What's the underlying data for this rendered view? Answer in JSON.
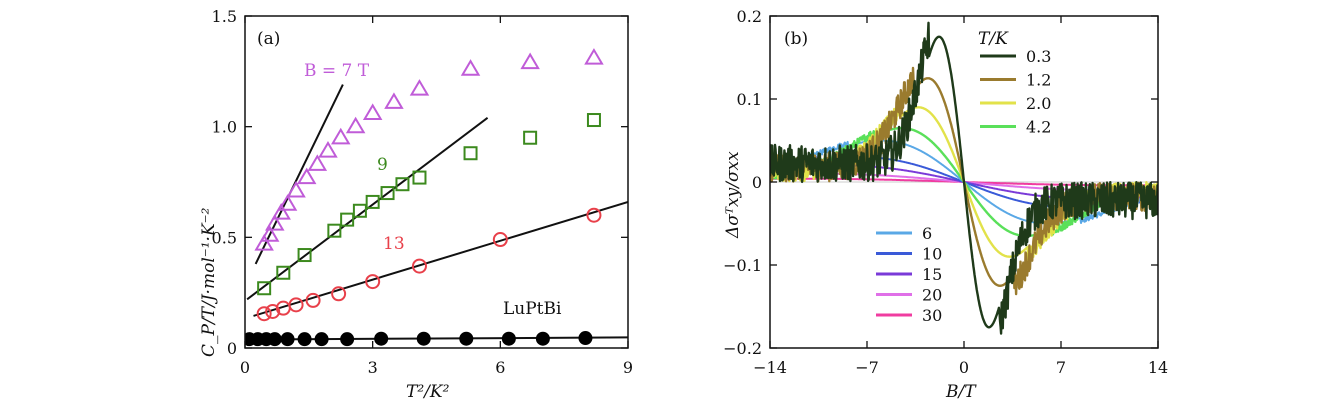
{
  "chart_data": [
    {
      "type": "scatter",
      "panel_label": "(a)",
      "xlabel": "T²/K²",
      "ylabel": "C_P/T/J·mol⁻¹·K⁻²",
      "xlim": [
        0,
        9
      ],
      "ylim": [
        0,
        1.5
      ],
      "xticks": [
        0,
        3,
        6,
        9
      ],
      "yticks": [
        0,
        0.5,
        1.0,
        1.5
      ],
      "xtick_labels": [
        "0",
        "3",
        "6",
        "9"
      ],
      "ytick_labels": [
        "0",
        "0.5",
        "1.0",
        "1.5"
      ],
      "annotations": [
        {
          "text": "B = 7  T",
          "color": "#c05cd8"
        },
        {
          "text": "9",
          "color": "#3c8a1e"
        },
        {
          "text": "13",
          "color": "#e8404a"
        },
        {
          "text": "LuPtBi",
          "color": "#111111"
        }
      ],
      "series": [
        {
          "marker": "triangle",
          "color": "#c05cd8",
          "x": [
            0.45,
            0.58,
            0.7,
            0.85,
            1.0,
            1.2,
            1.45,
            1.7,
            1.95,
            2.25,
            2.6,
            3.0,
            3.5,
            4.1,
            5.3,
            6.7,
            8.2
          ],
          "y": [
            0.47,
            0.51,
            0.56,
            0.61,
            0.65,
            0.71,
            0.77,
            0.83,
            0.89,
            0.95,
            1.0,
            1.06,
            1.11,
            1.17,
            1.26,
            1.29,
            1.31
          ],
          "fit_x": [
            0.25,
            2.3
          ],
          "fit_y": [
            0.38,
            1.19
          ]
        },
        {
          "marker": "square",
          "color": "#3c8a1e",
          "x": [
            0.45,
            0.9,
            1.4,
            2.1,
            2.4,
            2.7,
            3.0,
            3.35,
            3.7,
            4.1,
            5.3,
            6.7,
            8.2
          ],
          "y": [
            0.27,
            0.34,
            0.42,
            0.53,
            0.58,
            0.62,
            0.66,
            0.7,
            0.74,
            0.77,
            0.88,
            0.95,
            1.03
          ],
          "fit_x": [
            0.05,
            5.7
          ],
          "fit_y": [
            0.22,
            1.04
          ]
        },
        {
          "marker": "circle",
          "color": "#e8404a",
          "x": [
            0.45,
            0.65,
            0.9,
            1.2,
            1.6,
            2.2,
            3.0,
            4.1,
            6.0,
            8.2
          ],
          "y": [
            0.155,
            0.165,
            0.18,
            0.195,
            0.215,
            0.245,
            0.3,
            0.37,
            0.49,
            0.6
          ],
          "fit_x": [
            0.2,
            9.0
          ],
          "fit_y": [
            0.145,
            0.66
          ]
        },
        {
          "marker": "filled-circle",
          "color": "#000000",
          "x": [
            0.1,
            0.3,
            0.5,
            0.7,
            1.0,
            1.4,
            1.8,
            2.4,
            3.2,
            4.2,
            5.2,
            6.2,
            7.0,
            8.0
          ],
          "y": [
            0.04,
            0.04,
            0.04,
            0.04,
            0.04,
            0.04,
            0.04,
            0.04,
            0.042,
            0.042,
            0.042,
            0.042,
            0.042,
            0.045
          ],
          "fit_x": [
            0.0,
            9.0
          ],
          "fit_y": [
            0.038,
            0.048
          ]
        }
      ]
    },
    {
      "type": "line",
      "panel_label": "(b)",
      "xlabel": "B/T",
      "ylabel": "Δσᵀxy/σxx",
      "xlim": [
        -14,
        14
      ],
      "ylim": [
        -0.2,
        0.2
      ],
      "xticks": [
        -14,
        -7,
        0,
        7,
        14
      ],
      "yticks": [
        -0.2,
        -0.1,
        0,
        0.1,
        0.2
      ],
      "xtick_labels": [
        "−14",
        "−7",
        "0",
        "7",
        "14"
      ],
      "ytick_labels": [
        "−0.2",
        "−0.1",
        "0",
        "0.1",
        "0.2"
      ],
      "legend_title": "T/K",
      "legend_upper_placement": "top-right",
      "legend_lower_placement": "lower-left",
      "series": [
        {
          "name": "0.3",
          "color": "#1f3a1a",
          "peak_x": -1.8,
          "peak_y": 0.175,
          "noise": 0.028,
          "legend": "upper"
        },
        {
          "name": "1.2",
          "color": "#9a7b2e",
          "peak_x": -2.6,
          "peak_y": 0.125,
          "noise": 0.022,
          "legend": "upper"
        },
        {
          "name": "2.0",
          "color": "#e2e24a",
          "peak_x": -3.3,
          "peak_y": 0.09,
          "noise": 0.012,
          "legend": "upper"
        },
        {
          "name": "4.2",
          "color": "#5ae05a",
          "peak_x": -4.5,
          "peak_y": 0.065,
          "noise": 0.006,
          "legend": "upper"
        },
        {
          "name": "6",
          "color": "#5aa8e6",
          "peak_x": -6.0,
          "peak_y": 0.05,
          "noise": 0.004,
          "legend": "lower"
        },
        {
          "name": "10",
          "color": "#3a5ad8",
          "peak_x": -7.5,
          "peak_y": 0.03,
          "noise": 0.003,
          "legend": "lower"
        },
        {
          "name": "15",
          "color": "#7a3ad8",
          "peak_x": -9.0,
          "peak_y": 0.02,
          "noise": 0.002,
          "legend": "lower"
        },
        {
          "name": "20",
          "color": "#e070e8",
          "peak_x": -10.5,
          "peak_y": 0.01,
          "noise": 0.002,
          "legend": "lower"
        },
        {
          "name": "30",
          "color": "#f03ca0",
          "peak_x": -12.0,
          "peak_y": 0.004,
          "noise": 0.0015,
          "legend": "lower"
        }
      ]
    }
  ]
}
